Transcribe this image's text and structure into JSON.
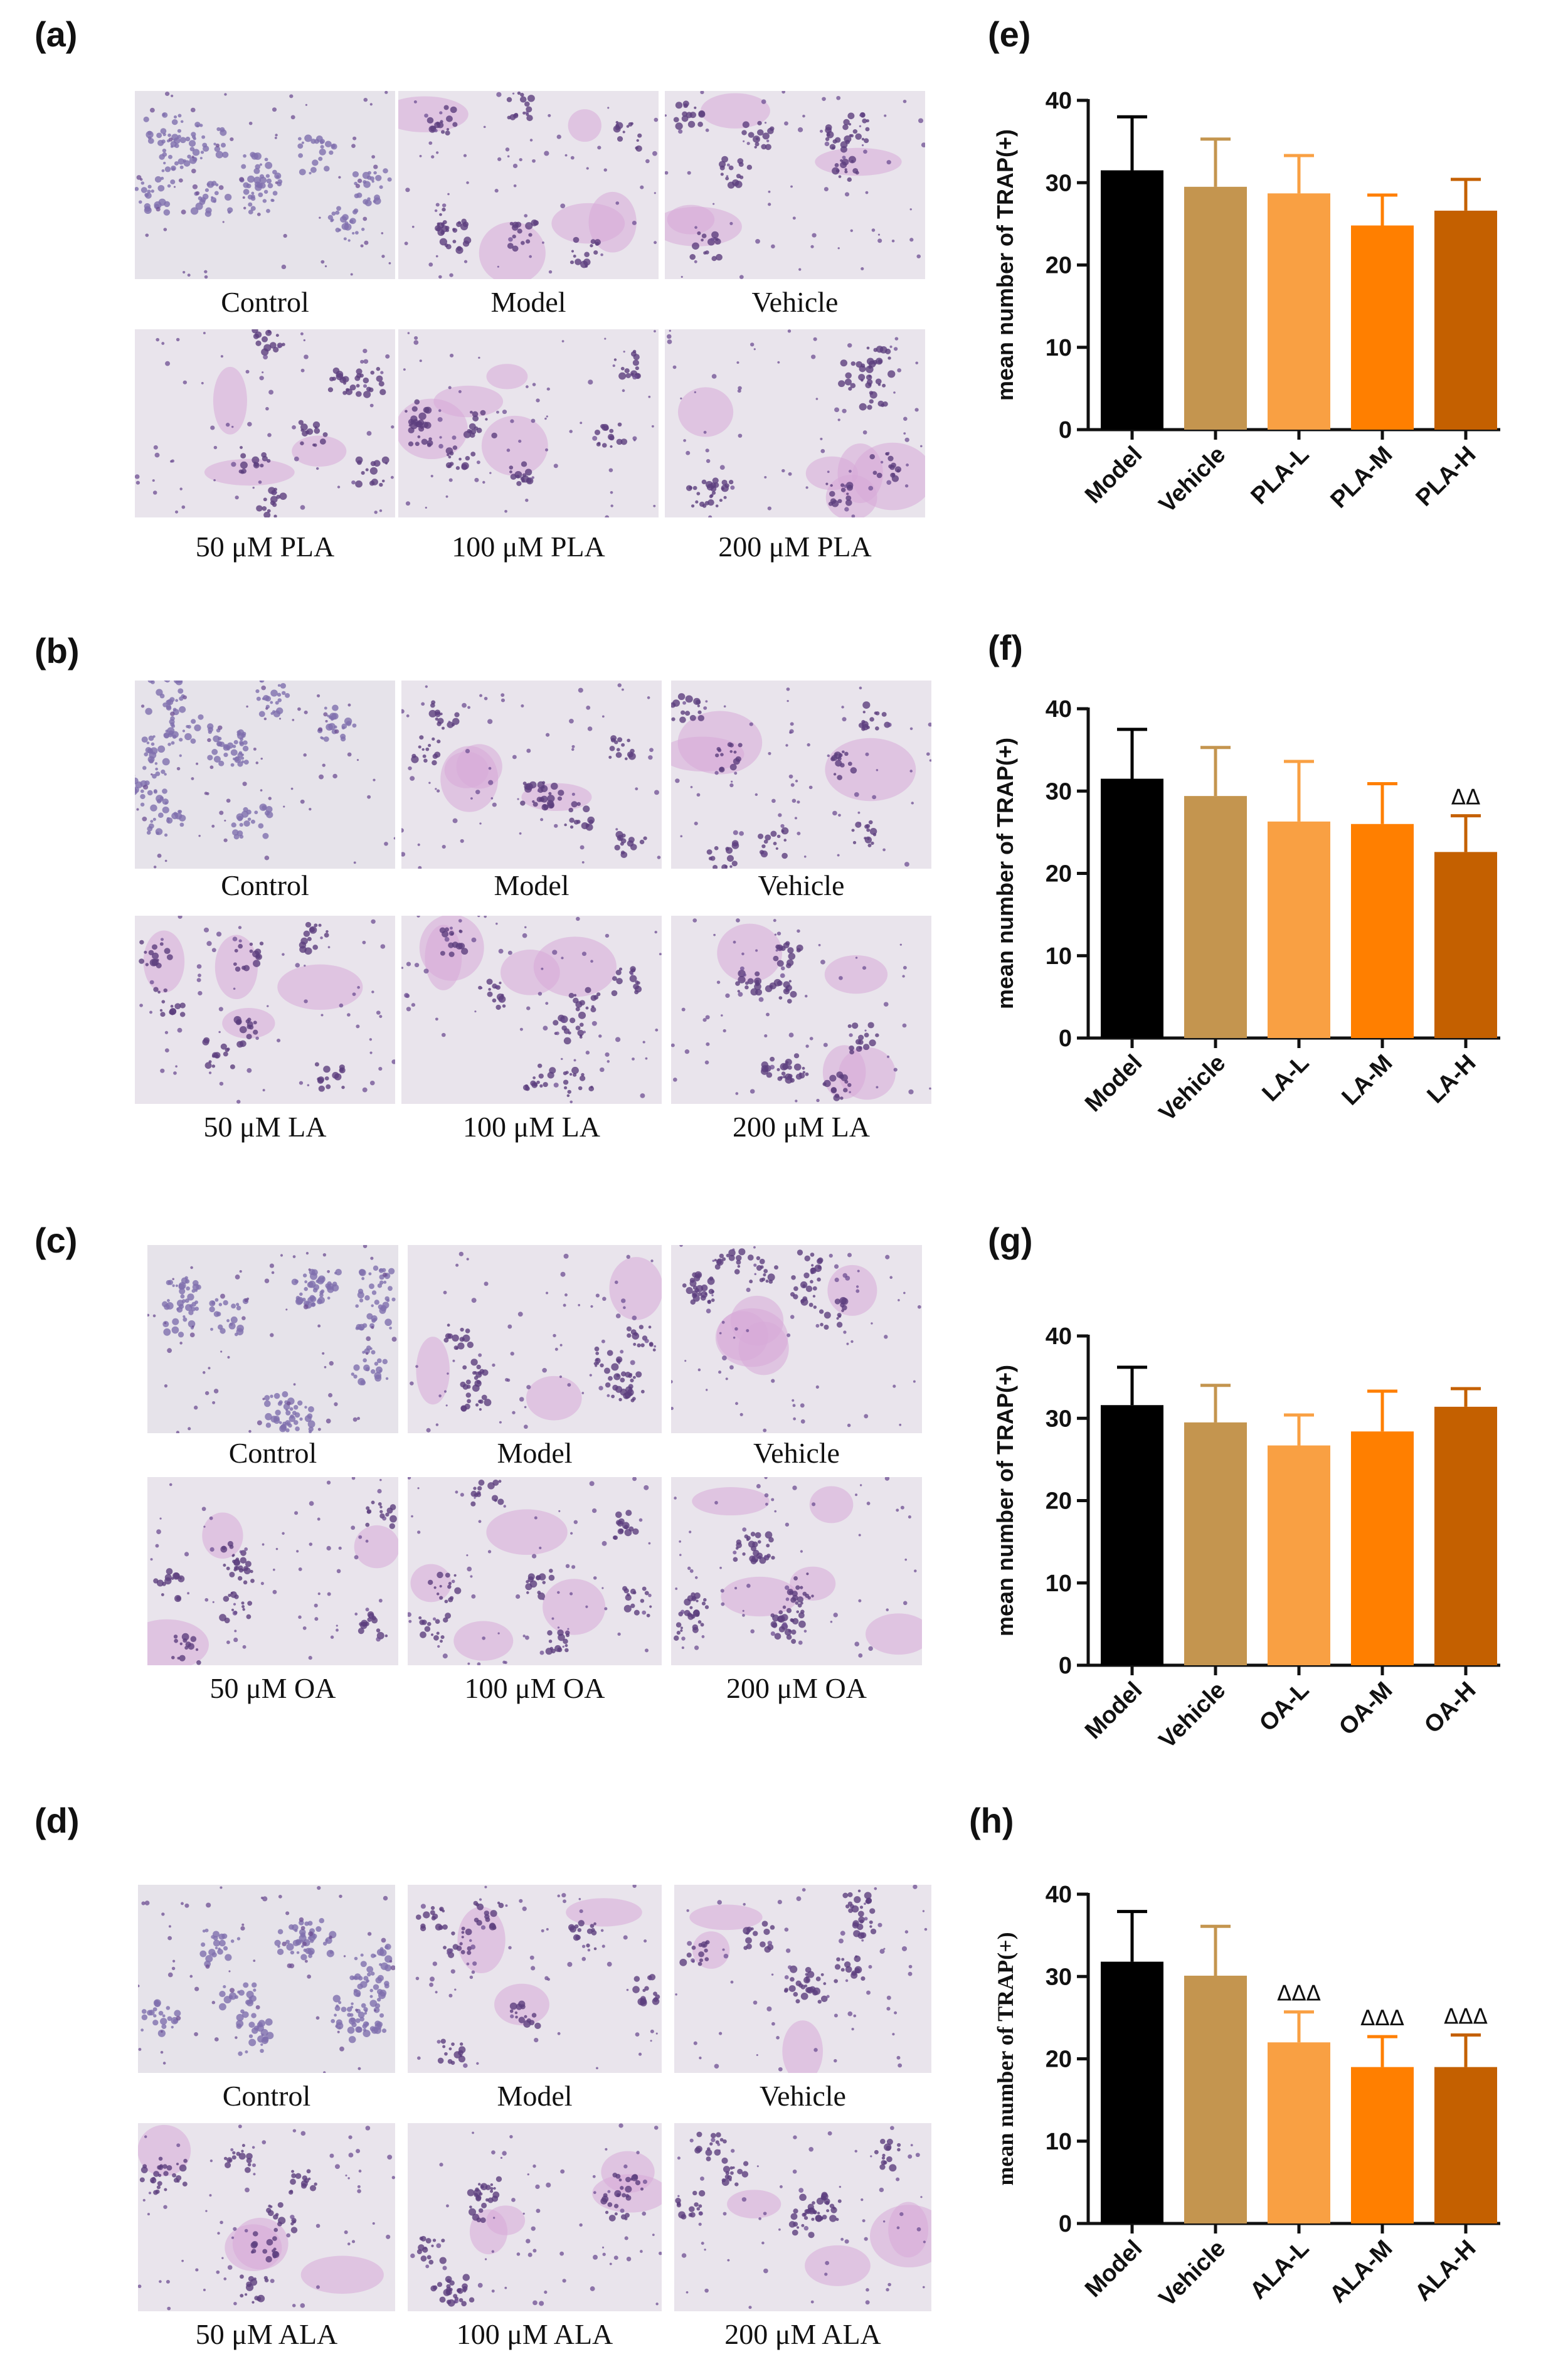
{
  "image_rows": [
    {
      "label": "(a)",
      "top": [
        "Control",
        "Model",
        "Vehicle"
      ],
      "bottom": [
        "50 μM PLA",
        "100 μM PLA",
        "200 μM PLA"
      ]
    },
    {
      "label": "(b)",
      "top": [
        "Control",
        "Model",
        "Vehicle"
      ],
      "bottom": [
        "50 μM LA",
        "100 μM LA",
        "200 μM LA"
      ]
    },
    {
      "label": "(c)",
      "top": [
        "Control",
        "Model",
        "Vehicle"
      ],
      "bottom": [
        "50 μM OA",
        "100 μM OA",
        "200 μM OA"
      ]
    },
    {
      "label": "(d)",
      "top": [
        "Control",
        "Model",
        "Vehicle"
      ],
      "bottom": [
        "50 μM ALA",
        "100 μM ALA",
        "200 μM ALA"
      ]
    }
  ],
  "bar_colors": [
    "#000000",
    "#c4954f",
    "#f9a043",
    "#ff7f00",
    "#c46000"
  ],
  "chart_data": [
    {
      "panel": "(e)",
      "type": "bar",
      "ylabel": "mean number of TRAP(+)",
      "ylim": [
        0,
        40
      ],
      "yticks": [
        0,
        10,
        20,
        30,
        40
      ],
      "categories": [
        "Model",
        "Vehicle",
        "PLA-L",
        "PLA-M",
        "PLA-H"
      ],
      "values": [
        31.5,
        29.5,
        28.7,
        24.8,
        26.6
      ],
      "errors": [
        6.5,
        5.8,
        4.6,
        3.7,
        3.8
      ],
      "significance": [
        "",
        "",
        "",
        "",
        ""
      ]
    },
    {
      "panel": "(f)",
      "type": "bar",
      "ylabel": "mean number of TRAP(+)",
      "ylim": [
        0,
        40
      ],
      "yticks": [
        0,
        10,
        20,
        30,
        40
      ],
      "categories": [
        "Model",
        "Vehicle",
        "LA-L",
        "LA-M",
        "LA-H"
      ],
      "values": [
        31.5,
        29.4,
        26.3,
        26.0,
        22.6
      ],
      "errors": [
        6.0,
        5.9,
        7.3,
        4.9,
        4.4
      ],
      "significance": [
        "",
        "",
        "",
        "",
        "ΔΔ"
      ]
    },
    {
      "panel": "(g)",
      "type": "bar",
      "ylabel": "mean number of TRAP(+)",
      "ylim": [
        0,
        40
      ],
      "yticks": [
        0,
        10,
        20,
        30,
        40
      ],
      "categories": [
        "Model",
        "Vehicle",
        "OA-L",
        "OA-M",
        "OA-H"
      ],
      "values": [
        31.6,
        29.5,
        26.7,
        28.4,
        31.4
      ],
      "errors": [
        4.6,
        4.5,
        3.7,
        4.9,
        2.2
      ],
      "significance": [
        "",
        "",
        "",
        "",
        ""
      ]
    },
    {
      "panel": "(h)",
      "type": "bar",
      "ylabel": "mean number of TRAP(+)",
      "ylim": [
        0,
        40
      ],
      "yticks": [
        0,
        10,
        20,
        30,
        40
      ],
      "categories": [
        "Model",
        "Vehicle",
        "ALA-L",
        "ALA-M",
        "ALA-H"
      ],
      "values": [
        31.8,
        30.1,
        22.0,
        19.0,
        19.0
      ],
      "errors": [
        6.1,
        6.0,
        3.7,
        3.7,
        3.9
      ],
      "significance": [
        "",
        "",
        "ΔΔΔ",
        "ΔΔΔ",
        "ΔΔΔ"
      ]
    }
  ]
}
